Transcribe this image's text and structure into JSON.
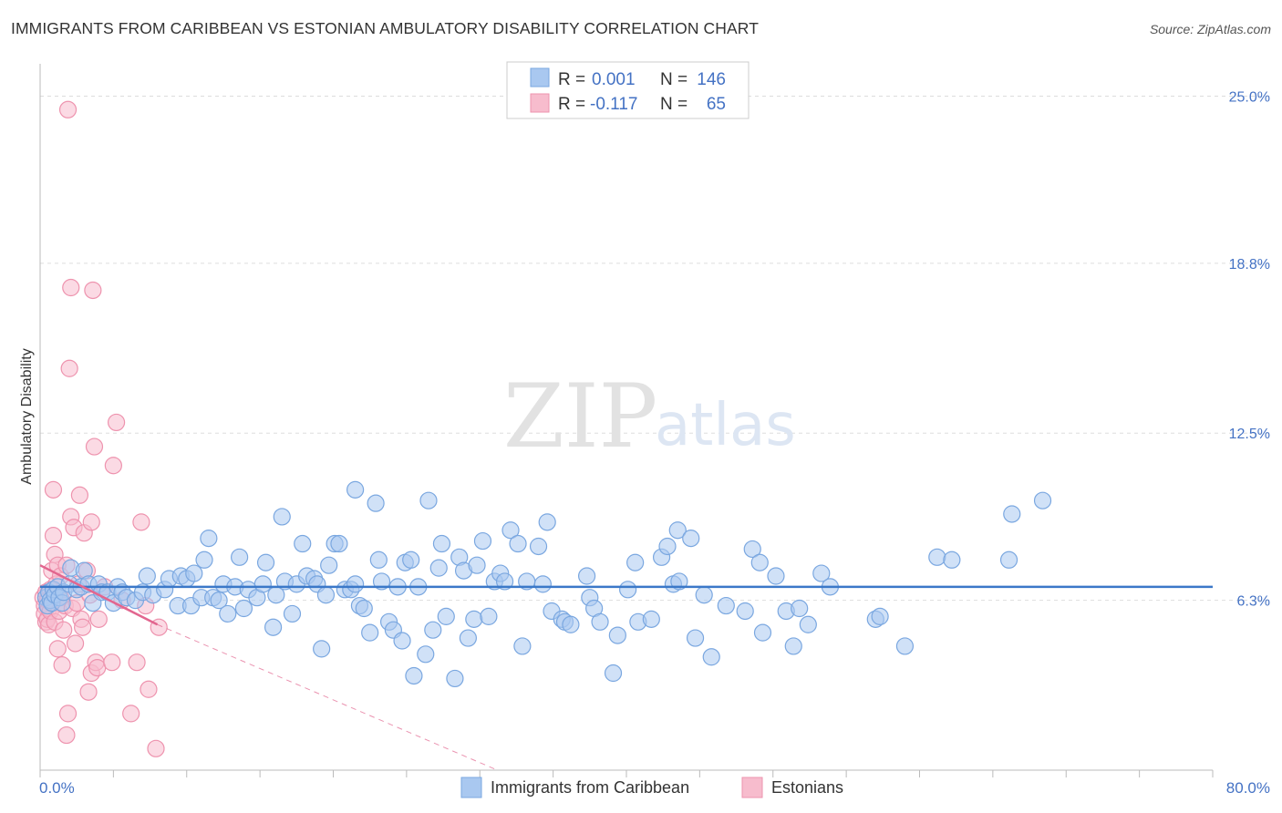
{
  "title": "IMMIGRANTS FROM CARIBBEAN VS ESTONIAN AMBULATORY DISABILITY CORRELATION CHART",
  "source": "Source: ZipAtlas.com",
  "watermark": {
    "zip": "ZIP",
    "atlas": "atlas"
  },
  "legend": {
    "r_label": "R =",
    "n_label": "N =",
    "series1": {
      "r": "0.001",
      "n": "146"
    },
    "series2": {
      "r": "-0.117",
      "n": "65"
    }
  },
  "colors": {
    "blue_fill": "#a9c8f0",
    "blue_stroke": "#7aa7e0",
    "blue_line": "#3b78c8",
    "pink_fill": "#f7bccd",
    "pink_stroke": "#ee93ae",
    "pink_line": "#e2668f",
    "tick_text": "#4472c4",
    "grid": "#dddddd"
  },
  "chart_data": {
    "type": "scatter",
    "title": "IMMIGRANTS FROM CARIBBEAN VS ESTONIAN AMBULATORY DISABILITY CORRELATION CHART",
    "xlabel": "",
    "ylabel": "Ambulatory Disability",
    "xlim": [
      0,
      80
    ],
    "ylim": [
      0,
      26.2
    ],
    "x_tick_labels": [
      "0.0%",
      "80.0%"
    ],
    "y_ticks": [
      6.3,
      12.5,
      18.8,
      25.0
    ],
    "y_tick_labels": [
      "6.3%",
      "12.5%",
      "18.8%",
      "25.0%"
    ],
    "series": [
      {
        "name": "Immigrants from Caribbean",
        "color": "#a9c8f0",
        "trend": {
          "x": [
            0,
            80
          ],
          "y": [
            6.8,
            6.8
          ]
        },
        "points": [
          [
            0.4,
            6.4
          ],
          [
            0.5,
            6.1
          ],
          [
            0.6,
            6.6
          ],
          [
            0.7,
            6.3
          ],
          [
            0.8,
            6.2
          ],
          [
            0.9,
            6.7
          ],
          [
            1.0,
            6.5
          ],
          [
            1.2,
            6.8
          ],
          [
            1.3,
            6.4
          ],
          [
            1.5,
            6.2
          ],
          [
            1.6,
            6.6
          ],
          [
            2.0,
            6.9
          ],
          [
            2.1,
            7.5
          ],
          [
            2.5,
            6.7
          ],
          [
            2.8,
            6.8
          ],
          [
            3.0,
            7.4
          ],
          [
            3.3,
            6.9
          ],
          [
            3.6,
            6.2
          ],
          [
            4.0,
            6.9
          ],
          [
            4.2,
            6.6
          ],
          [
            4.6,
            6.6
          ],
          [
            5.0,
            6.2
          ],
          [
            5.3,
            6.8
          ],
          [
            5.6,
            6.6
          ],
          [
            5.9,
            6.4
          ],
          [
            6.5,
            6.3
          ],
          [
            7.0,
            6.6
          ],
          [
            7.3,
            7.2
          ],
          [
            7.7,
            6.5
          ],
          [
            8.5,
            6.7
          ],
          [
            8.8,
            7.1
          ],
          [
            9.4,
            6.1
          ],
          [
            9.6,
            7.2
          ],
          [
            10.0,
            7.1
          ],
          [
            10.3,
            6.1
          ],
          [
            10.5,
            7.3
          ],
          [
            11.0,
            6.4
          ],
          [
            11.2,
            7.8
          ],
          [
            11.5,
            8.6
          ],
          [
            11.8,
            6.4
          ],
          [
            12.2,
            6.3
          ],
          [
            12.5,
            6.9
          ],
          [
            12.8,
            5.8
          ],
          [
            13.3,
            6.8
          ],
          [
            13.6,
            7.9
          ],
          [
            13.9,
            6.0
          ],
          [
            14.2,
            6.7
          ],
          [
            14.8,
            6.4
          ],
          [
            15.2,
            6.9
          ],
          [
            15.4,
            7.7
          ],
          [
            15.9,
            5.3
          ],
          [
            16.1,
            6.5
          ],
          [
            16.5,
            9.4
          ],
          [
            16.7,
            7.0
          ],
          [
            17.2,
            5.8
          ],
          [
            17.5,
            6.9
          ],
          [
            17.9,
            8.4
          ],
          [
            18.2,
            7.2
          ],
          [
            18.7,
            7.1
          ],
          [
            18.9,
            6.9
          ],
          [
            19.2,
            4.5
          ],
          [
            19.5,
            6.5
          ],
          [
            19.7,
            7.6
          ],
          [
            20.1,
            8.4
          ],
          [
            20.4,
            8.4
          ],
          [
            20.8,
            6.7
          ],
          [
            21.2,
            6.7
          ],
          [
            21.5,
            6.9
          ],
          [
            21.8,
            6.1
          ],
          [
            22.1,
            6.0
          ],
          [
            21.5,
            10.4
          ],
          [
            22.5,
            5.1
          ],
          [
            22.9,
            9.9
          ],
          [
            23.1,
            7.8
          ],
          [
            23.3,
            7.0
          ],
          [
            23.8,
            5.5
          ],
          [
            24.1,
            5.2
          ],
          [
            24.4,
            6.8
          ],
          [
            24.7,
            4.8
          ],
          [
            24.9,
            7.7
          ],
          [
            25.3,
            7.8
          ],
          [
            25.5,
            3.5
          ],
          [
            25.8,
            6.8
          ],
          [
            26.3,
            4.3
          ],
          [
            26.5,
            10.0
          ],
          [
            26.8,
            5.2
          ],
          [
            27.2,
            7.5
          ],
          [
            27.4,
            8.4
          ],
          [
            27.7,
            5.7
          ],
          [
            28.3,
            3.4
          ],
          [
            28.6,
            7.9
          ],
          [
            28.9,
            7.4
          ],
          [
            29.2,
            4.9
          ],
          [
            29.6,
            5.6
          ],
          [
            29.8,
            7.6
          ],
          [
            30.2,
            8.5
          ],
          [
            30.6,
            5.7
          ],
          [
            31.0,
            7.0
          ],
          [
            31.4,
            7.3
          ],
          [
            31.7,
            7.0
          ],
          [
            32.1,
            8.9
          ],
          [
            32.6,
            8.4
          ],
          [
            32.9,
            4.6
          ],
          [
            33.2,
            7.0
          ],
          [
            34.0,
            8.3
          ],
          [
            34.3,
            6.9
          ],
          [
            34.6,
            9.2
          ],
          [
            34.9,
            5.9
          ],
          [
            35.6,
            5.6
          ],
          [
            35.8,
            5.5
          ],
          [
            36.2,
            5.4
          ],
          [
            37.3,
            7.2
          ],
          [
            37.5,
            6.4
          ],
          [
            37.8,
            6.0
          ],
          [
            38.2,
            5.5
          ],
          [
            39.1,
            3.6
          ],
          [
            39.4,
            5.0
          ],
          [
            40.1,
            6.7
          ],
          [
            40.6,
            7.7
          ],
          [
            40.8,
            5.5
          ],
          [
            41.7,
            5.6
          ],
          [
            42.4,
            7.9
          ],
          [
            42.8,
            8.3
          ],
          [
            43.2,
            6.9
          ],
          [
            43.5,
            8.9
          ],
          [
            43.6,
            7.0
          ],
          [
            44.4,
            8.6
          ],
          [
            44.7,
            4.9
          ],
          [
            45.3,
            6.5
          ],
          [
            45.8,
            4.2
          ],
          [
            46.8,
            6.1
          ],
          [
            48.1,
            5.9
          ],
          [
            48.6,
            8.2
          ],
          [
            49.1,
            7.7
          ],
          [
            49.3,
            5.1
          ],
          [
            50.2,
            7.2
          ],
          [
            50.9,
            5.9
          ],
          [
            51.4,
            4.6
          ],
          [
            51.8,
            6.0
          ],
          [
            52.4,
            5.4
          ],
          [
            53.3,
            7.3
          ],
          [
            53.9,
            6.8
          ],
          [
            57.0,
            5.6
          ],
          [
            57.3,
            5.7
          ],
          [
            59.0,
            4.6
          ],
          [
            61.2,
            7.9
          ],
          [
            62.2,
            7.8
          ],
          [
            66.1,
            7.8
          ],
          [
            66.3,
            9.5
          ],
          [
            68.4,
            10.0
          ]
        ]
      },
      {
        "name": "Estonians",
        "color": "#f7bccd",
        "trend": {
          "x": [
            0,
            8
          ],
          "y": [
            7.6,
            5.4
          ]
        },
        "trend_dashed": {
          "x": [
            8,
            31.2
          ],
          "y": [
            5.4,
            0
          ]
        },
        "points": [
          [
            0.2,
            6.4
          ],
          [
            0.3,
            6.1
          ],
          [
            0.3,
            5.8
          ],
          [
            0.4,
            5.5
          ],
          [
            0.4,
            6.6
          ],
          [
            0.5,
            5.6
          ],
          [
            0.5,
            6.3
          ],
          [
            0.6,
            6.0
          ],
          [
            0.6,
            5.4
          ],
          [
            0.7,
            6.7
          ],
          [
            0.7,
            5.9
          ],
          [
            0.8,
            6.2
          ],
          [
            0.8,
            7.4
          ],
          [
            0.9,
            10.4
          ],
          [
            0.9,
            8.7
          ],
          [
            1.0,
            8.0
          ],
          [
            1.0,
            5.5
          ],
          [
            1.1,
            6.5
          ],
          [
            1.1,
            6.9
          ],
          [
            1.2,
            7.6
          ],
          [
            1.2,
            4.5
          ],
          [
            1.3,
            5.9
          ],
          [
            1.4,
            6.4
          ],
          [
            1.4,
            7.2
          ],
          [
            1.5,
            3.9
          ],
          [
            1.6,
            5.2
          ],
          [
            1.7,
            6.1
          ],
          [
            1.8,
            7.6
          ],
          [
            1.9,
            2.1
          ],
          [
            1.8,
            1.3
          ],
          [
            1.9,
            24.5
          ],
          [
            2.0,
            14.9
          ],
          [
            2.1,
            17.9
          ],
          [
            2.1,
            9.4
          ],
          [
            2.2,
            6.0
          ],
          [
            2.3,
            9.0
          ],
          [
            2.4,
            4.7
          ],
          [
            2.5,
            6.2
          ],
          [
            2.6,
            6.9
          ],
          [
            2.7,
            10.2
          ],
          [
            2.8,
            5.6
          ],
          [
            2.9,
            5.3
          ],
          [
            3.0,
            8.8
          ],
          [
            3.2,
            7.4
          ],
          [
            3.3,
            2.9
          ],
          [
            3.4,
            6.5
          ],
          [
            3.5,
            9.2
          ],
          [
            3.5,
            3.6
          ],
          [
            3.6,
            17.8
          ],
          [
            3.7,
            12.0
          ],
          [
            3.8,
            4.0
          ],
          [
            3.9,
            3.8
          ],
          [
            4.0,
            5.6
          ],
          [
            4.4,
            6.8
          ],
          [
            4.9,
            4.0
          ],
          [
            5.0,
            11.3
          ],
          [
            5.2,
            12.9
          ],
          [
            5.6,
            6.3
          ],
          [
            6.2,
            2.1
          ],
          [
            6.6,
            4.0
          ],
          [
            6.9,
            9.2
          ],
          [
            7.2,
            6.1
          ],
          [
            7.4,
            3.0
          ],
          [
            7.9,
            0.8
          ],
          [
            8.1,
            5.3
          ]
        ]
      }
    ]
  },
  "bottom_legend": [
    {
      "label": "Immigrants from Caribbean"
    },
    {
      "label": "Estonians"
    }
  ]
}
